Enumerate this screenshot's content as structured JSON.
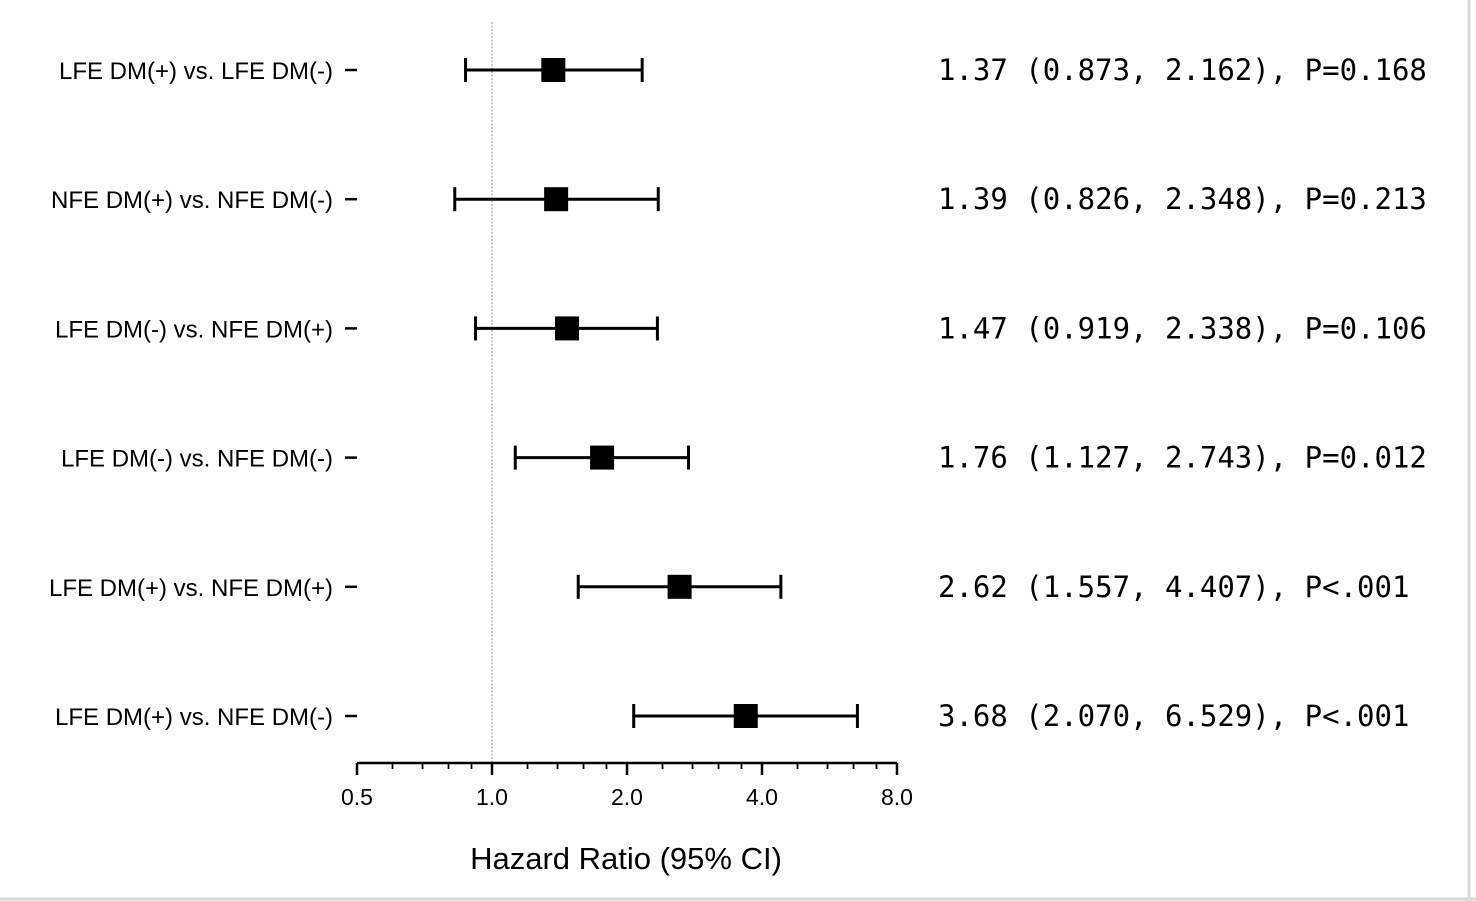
{
  "chart_data": {
    "type": "forest",
    "xlabel": "Hazard Ratio (95% CI)",
    "x_scale": "log2",
    "xlim": [
      0.5,
      8.0
    ],
    "major_ticks": [
      0.5,
      1.0,
      2.0,
      4.0,
      8.0
    ],
    "tick_labels": [
      "0.5",
      "1.0",
      "2.0",
      "4.0",
      "8.0"
    ],
    "minor_ticks": [
      0.6,
      0.7,
      0.8,
      0.9,
      1.2,
      1.4,
      1.6,
      1.8,
      2.4,
      2.8,
      3.2,
      3.6,
      4.8,
      5.6,
      6.4,
      7.2
    ],
    "reference_line": 1.0,
    "rows": [
      {
        "label": "LFE DM(+) vs. LFE DM(-)",
        "hr": 1.37,
        "lower": 0.873,
        "upper": 2.162,
        "text": "1.37 (0.873, 2.162), P=0.168"
      },
      {
        "label": "NFE DM(+) vs. NFE DM(-)",
        "hr": 1.39,
        "lower": 0.826,
        "upper": 2.348,
        "text": "1.39 (0.826, 2.348), P=0.213"
      },
      {
        "label": "LFE DM(-) vs. NFE DM(+)",
        "hr": 1.47,
        "lower": 0.919,
        "upper": 2.338,
        "text": "1.47 (0.919, 2.338), P=0.106"
      },
      {
        "label": "LFE DM(-) vs. NFE DM(-)",
        "hr": 1.76,
        "lower": 1.127,
        "upper": 2.743,
        "text": "1.76 (1.127, 2.743), P=0.012"
      },
      {
        "label": "LFE DM(+) vs. NFE DM(+)",
        "hr": 2.62,
        "lower": 1.557,
        "upper": 4.407,
        "text": "2.62 (1.557, 4.407), P<.001"
      },
      {
        "label": "LFE DM(+) vs. NFE DM(-)",
        "hr": 3.68,
        "lower": 2.07,
        "upper": 6.529,
        "text": "3.68 (2.070, 6.529), P<.001"
      }
    ]
  }
}
